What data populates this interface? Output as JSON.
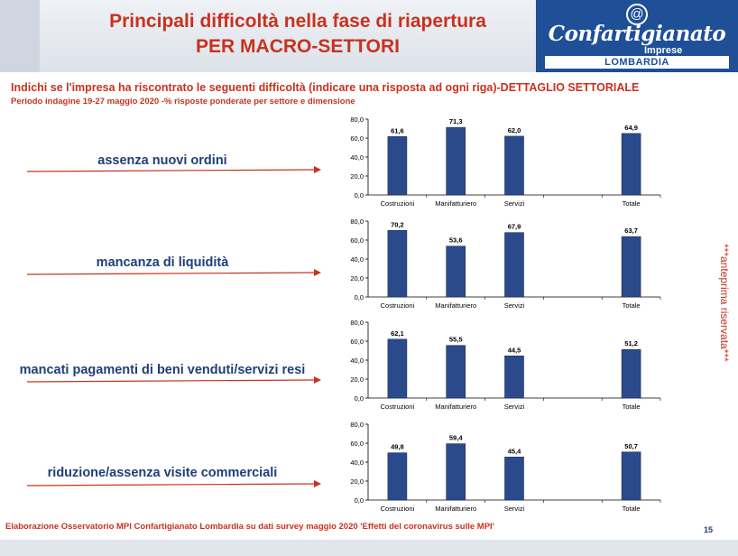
{
  "header": {
    "title_line1": "Principali difficoltà nella fase di riapertura",
    "title_line2": "PER MACRO-SETTORI",
    "logo": {
      "name": "Confartigianato",
      "sub": "Imprese",
      "region": "LOMBARDIA"
    }
  },
  "subtitle": "Indichi se l'impresa ha riscontrato le seguenti difficoltà (indicare una risposta ad ogni riga)-DETTAGLIO SETTORIALE",
  "note": "Periodo indagine 19-27 maggio 2020  -% risposte ponderate per settore e dimensione",
  "side_note": "***anteprima riservata***",
  "footer": "Elaborazione Osservatorio MPI Confartigianato Lombardia su dati survey maggio 2020  'Effetti del coronavirus sulle MPI'",
  "page_number": "15",
  "colors": {
    "accent_red": "#c8321e",
    "bar_fill": "#2a4a8c",
    "label_blue": "#1f3f78"
  },
  "chart_data": [
    {
      "type": "bar",
      "label": "assenza nuovi ordini",
      "categories": [
        "Costruzioni",
        "Manifatturiero",
        "Servizi",
        "",
        "Totale"
      ],
      "values": [
        61.6,
        71.3,
        62.0,
        null,
        64.9
      ],
      "value_labels": [
        "61,6",
        "71,3",
        "62,0",
        "",
        "64,9"
      ],
      "yticks": [
        "0,0",
        "20,0",
        "40,0",
        "60,0",
        "80,0"
      ],
      "ylim": [
        0,
        80
      ]
    },
    {
      "type": "bar",
      "label": "mancanza di liquidità",
      "categories": [
        "Costruzioni",
        "Manifatturiero",
        "Servizi",
        "",
        "Totale"
      ],
      "values": [
        70.2,
        53.6,
        67.9,
        null,
        63.7
      ],
      "value_labels": [
        "70,2",
        "53,6",
        "67,9",
        "",
        "63,7"
      ],
      "yticks": [
        "0,0",
        "20,0",
        "40,0",
        "60,0",
        "80,0"
      ],
      "ylim": [
        0,
        80
      ]
    },
    {
      "type": "bar",
      "label": "mancati pagamenti di beni venduti/servizi resi",
      "categories": [
        "Costruzioni",
        "Manifatturiero",
        "Servizi",
        "",
        "Totale"
      ],
      "values": [
        62.1,
        55.5,
        44.5,
        null,
        51.2
      ],
      "value_labels": [
        "62,1",
        "55,5",
        "44,5",
        "",
        "51,2"
      ],
      "yticks": [
        "0,0",
        "20,0",
        "40,0",
        "60,0",
        "80,0"
      ],
      "ylim": [
        0,
        80
      ]
    },
    {
      "type": "bar",
      "label": "riduzione/assenza visite commerciali",
      "categories": [
        "Costruzioni",
        "Manifatturiero",
        "Servizi",
        "",
        "Totale"
      ],
      "values": [
        49.8,
        59.4,
        45.4,
        null,
        50.7
      ],
      "value_labels": [
        "49,8",
        "59,4",
        "45,4",
        "",
        "50,7"
      ],
      "yticks": [
        "0,0",
        "20,0",
        "40,0",
        "60,0",
        "80,0"
      ],
      "ylim": [
        0,
        80
      ]
    }
  ]
}
